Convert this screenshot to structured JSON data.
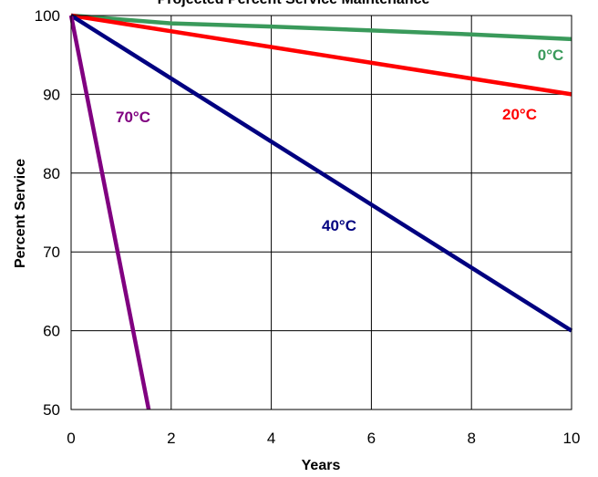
{
  "chart_data": {
    "type": "line",
    "title": "Projected Percent Service Maintenance",
    "xlabel": "Years",
    "ylabel": "Percent Service",
    "xlim": [
      0,
      10
    ],
    "ylim": [
      50,
      100
    ],
    "x_ticks": [
      "0",
      "2",
      "4",
      "6",
      "8",
      "10"
    ],
    "y_ticks": [
      "50",
      "60",
      "70",
      "80",
      "90",
      "100"
    ],
    "grid": true,
    "series": [
      {
        "name": "0°C",
        "color": "#3a9a5b",
        "x": [
          0,
          2,
          4,
          6,
          8,
          10
        ],
        "y": [
          100,
          99,
          98.6,
          98.1,
          97.6,
          97
        ]
      },
      {
        "name": "20°C",
        "color": "#ff0000",
        "x": [
          0,
          10
        ],
        "y": [
          100,
          90
        ]
      },
      {
        "name": "40°C",
        "color": "#000080",
        "x": [
          0,
          10
        ],
        "y": [
          100,
          60
        ]
      },
      {
        "name": "70°C",
        "color": "#800080",
        "x": [
          0,
          1.55
        ],
        "y": [
          100,
          50
        ]
      }
    ]
  }
}
